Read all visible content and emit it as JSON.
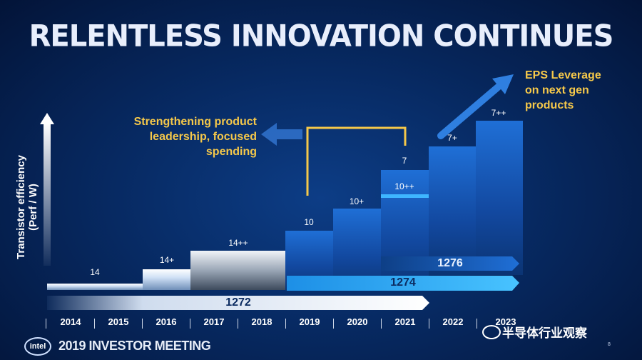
{
  "title": "RELENTLESS INNOVATION CONTINUES",
  "y_axis_label_line1": "Transistor efficiency",
  "y_axis_label_line2": "(Perf / W)",
  "annotation_left": [
    "Strengthening product",
    "leadership, focused",
    "spending"
  ],
  "annotation_right": [
    "EPS Leverage",
    "on next gen",
    "products"
  ],
  "nodes": [
    {
      "label": "14"
    },
    {
      "label": "14+"
    },
    {
      "label": "14++"
    },
    {
      "label": "10"
    },
    {
      "label": "10+"
    },
    {
      "label": "10++"
    },
    {
      "label": "7"
    },
    {
      "label": "7+"
    },
    {
      "label": "7++"
    }
  ],
  "roadmaps": {
    "a": "1272",
    "b": "1274",
    "c": "1276"
  },
  "years": [
    "2014",
    "2015",
    "2016",
    "2017",
    "2018",
    "2019",
    "2020",
    "2021",
    "2022",
    "2023"
  ],
  "footer": {
    "logo": "intel",
    "event": "2019 INVESTOR MEETING",
    "page": "8"
  },
  "watermark": "半导体行业观察",
  "colors": {
    "background": "#072a63",
    "accent": "#f5c84a",
    "bar_blue": "#12489f",
    "roadmap_cyan": "#3fb6ff"
  }
}
